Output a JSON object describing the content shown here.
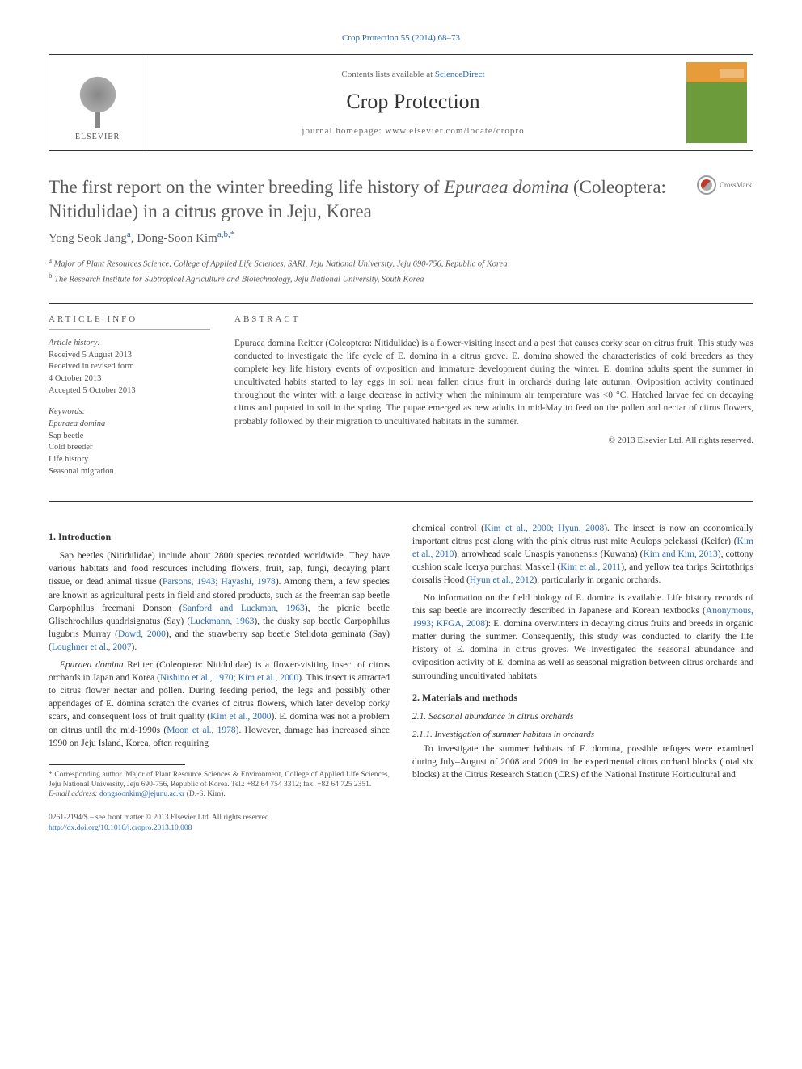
{
  "journal": {
    "citation_link": "Crop Protection 55 (2014) 68–73",
    "contents_label": "Contents lists available at ",
    "contents_link": "ScienceDirect",
    "name": "Crop Protection",
    "homepage_label": "journal homepage: www.elsevier.com/locate/cropro",
    "elsevier": "ELSEVIER"
  },
  "crossmark": {
    "label": "CrossMark"
  },
  "article": {
    "title_pre": "The first report on the winter breeding life history of ",
    "title_species": "Epuraea domina",
    "title_post": " (Coleoptera: Nitidulidae) in a citrus grove in Jeju, Korea",
    "authors_html": "Yong Seok Jang",
    "author1_sup": "a",
    "author2": "Dong-Soon Kim",
    "author2_sup": "a,b,",
    "author2_star": "*",
    "affiliations": {
      "a": "Major of Plant Resources Science, College of Applied Life Sciences, SARI, Jeju National University, Jeju 690-756, Republic of Korea",
      "b": "The Research Institute for Subtropical Agriculture and Biotechnology, Jeju National University, South Korea"
    }
  },
  "article_info": {
    "heading": "ARTICLE INFO",
    "history_label": "Article history:",
    "received": "Received 5 August 2013",
    "revised1": "Received in revised form",
    "revised2": "4 October 2013",
    "accepted": "Accepted 5 October 2013",
    "keywords_label": "Keywords:",
    "keywords": [
      "Epuraea domina",
      "Sap beetle",
      "Cold breeder",
      "Life history",
      "Seasonal migration"
    ]
  },
  "abstract": {
    "heading": "ABSTRACT",
    "text": "Epuraea domina Reitter (Coleoptera: Nitidulidae) is a flower-visiting insect and a pest that causes corky scar on citrus fruit. This study was conducted to investigate the life cycle of E. domina in a citrus grove. E. domina showed the characteristics of cold breeders as they complete key life history events of oviposition and immature development during the winter. E. domina adults spent the summer in uncultivated habits started to lay eggs in soil near fallen citrus fruit in orchards during late autumn. Oviposition activity continued throughout the winter with a large decrease in activity when the minimum air temperature was <0 °C. Hatched larvae fed on decaying citrus and pupated in soil in the spring. The pupae emerged as new adults in mid-May to feed on the pollen and nectar of citrus flowers, probably followed by their migration to uncultivated habitats in the summer.",
    "copyright": "© 2013 Elsevier Ltd. All rights reserved."
  },
  "body": {
    "s1_heading": "1. Introduction",
    "s1_p1": "Sap beetles (Nitidulidae) include about 2800 species recorded worldwide. They have various habitats and food resources including flowers, fruit, sap, fungi, decaying plant tissue, or dead animal tissue (",
    "s1_p1_ref1": "Parsons, 1943; Hayashi, 1978",
    "s1_p1b": "). Among them, a few species are known as agricultural pests in field and stored products, such as the freeman sap beetle Carpophilus freemani Donson (",
    "s1_p1_ref2": "Sanford and Luckman, 1963",
    "s1_p1c": "), the picnic beetle Glischrochilus quadrisignatus (Say) (",
    "s1_p1_ref3": "Luckmann, 1963",
    "s1_p1d": "), the dusky sap beetle Carpophilus lugubris Murray (",
    "s1_p1_ref4": "Dowd, 2000",
    "s1_p1e": "), and the strawberry sap beetle Stelidota geminata (Say) (",
    "s1_p1_ref5": "Loughner et al., 2007",
    "s1_p1f": ").",
    "s1_p2a": "Epuraea domina Reitter (Coleoptera: Nitidulidae) is a flower-visiting insect of citrus orchards in Japan and Korea (",
    "s1_p2_ref1": "Nishino et al., 1970; Kim et al., 2000",
    "s1_p2b": "). This insect is attracted to citrus flower nectar and pollen. During feeding period, the legs and possibly other appendages of E. domina scratch the ovaries of citrus flowers, which later develop corky scars, and consequent loss of fruit quality (",
    "s1_p2_ref2": "Kim et al., 2000",
    "s1_p2c": "). E. domina was not a problem on citrus until the mid-1990s (",
    "s1_p2_ref3": "Moon et al., 1978",
    "s1_p2d": "). However, damage has increased since 1990 on Jeju Island, Korea, often requiring",
    "col2_p1a": "chemical control (",
    "col2_p1_ref1": "Kim et al., 2000; Hyun, 2008",
    "col2_p1b": "). The insect is now an economically important citrus pest along with the pink citrus rust mite Aculops pelekassi (Keifer) (",
    "col2_p1_ref2": "Kim et al., 2010",
    "col2_p1c": "), arrowhead scale Unaspis yanonensis (Kuwana) (",
    "col2_p1_ref3": "Kim and Kim, 2013",
    "col2_p1d": "), cottony cushion scale Icerya purchasi Maskell (",
    "col2_p1_ref4": "Kim et al., 2011",
    "col2_p1e": "), and yellow tea thrips Scirtothrips dorsalis Hood (",
    "col2_p1_ref5": "Hyun et al., 2012",
    "col2_p1f": "), particularly in organic orchards.",
    "col2_p2a": "No information on the field biology of E. domina is available. Life history records of this sap beetle are incorrectly described in Japanese and Korean textbooks (",
    "col2_p2_ref1": "Anonymous, 1993; KFGA, 2008",
    "col2_p2b": "): E. domina overwinters in decaying citrus fruits and breeds in organic matter during the summer. Consequently, this study was conducted to clarify the life history of E. domina in citrus groves. We investigated the seasonal abundance and oviposition activity of E. domina as well as seasonal migration between citrus orchards and surrounding uncultivated habitats.",
    "s2_heading": "2. Materials and methods",
    "s21_heading": "2.1. Seasonal abundance in citrus orchards",
    "s211_heading": "2.1.1. Investigation of summer habitats in orchards",
    "s211_p1": "To investigate the summer habitats of E. domina, possible refuges were examined during July–August of 2008 and 2009 in the experimental citrus orchard blocks (total six blocks) at the Citrus Research Station (CRS) of the National Institute Horticultural and"
  },
  "footnote": {
    "corresponding": "* Corresponding author. Major of Plant Resource Sciences & Environment, College of Applied Life Sciences, Jeju National University, Jeju 690-756, Republic of Korea. Tel.: +82 64 754 3312; fax: +82 64 725 2351.",
    "email_label": "E-mail address: ",
    "email": "dongsoonkim@jejunu.ac.kr",
    "email_suffix": " (D.-S. Kim)."
  },
  "bottom": {
    "line1": "0261-2194/$ – see front matter © 2013 Elsevier Ltd. All rights reserved.",
    "doi": "http://dx.doi.org/10.1016/j.cropro.2013.10.008"
  }
}
